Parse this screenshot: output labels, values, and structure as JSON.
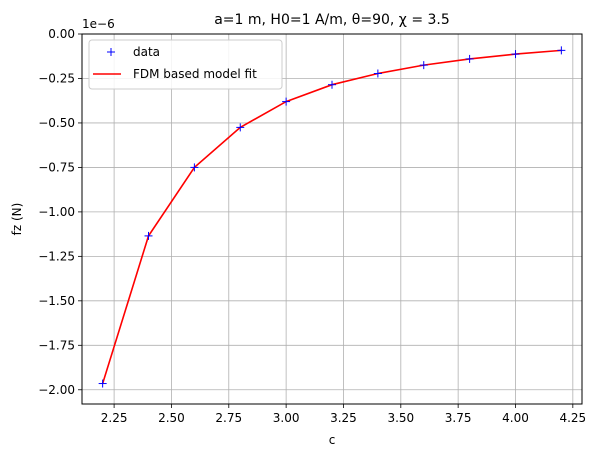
{
  "chart_data": {
    "type": "line",
    "title": "a=1 m, H0=1 A/m, θ=90, χ = 3.5",
    "xlabel": "c",
    "ylabel": "fz (N)",
    "y_offset_label": "1e−6",
    "xlim": [
      2.11,
      4.29
    ],
    "ylim": [
      -2.08,
      0.0
    ],
    "xticks": [
      2.25,
      2.5,
      2.75,
      3.0,
      3.25,
      3.5,
      3.75,
      4.0,
      4.25
    ],
    "xtick_labels": [
      "2.25",
      "2.50",
      "2.75",
      "3.00",
      "3.25",
      "3.50",
      "3.75",
      "4.00",
      "4.25"
    ],
    "yticks": [
      0.0,
      -0.25,
      -0.5,
      -0.75,
      -1.0,
      -1.25,
      -1.5,
      -1.75,
      -2.0
    ],
    "ytick_labels": [
      "0.00",
      "−0.25",
      "−0.50",
      "−0.75",
      "−1.00",
      "−1.25",
      "−1.50",
      "−1.75",
      "−2.00"
    ],
    "grid": true,
    "legend_position": "top-left",
    "x": [
      2.2,
      2.4,
      2.6,
      2.8,
      3.0,
      3.2,
      3.4,
      3.6,
      3.8,
      4.0,
      4.2
    ],
    "series": [
      {
        "name": "data",
        "style": "marker",
        "marker": "+",
        "color": "#0000ff",
        "values": [
          -1.965,
          -1.135,
          -0.75,
          -0.525,
          -0.38,
          -0.285,
          -0.222,
          -0.175,
          -0.14,
          -0.113,
          -0.092
        ]
      },
      {
        "name": "FDM based model fit",
        "style": "line",
        "color": "#ff0000",
        "values": [
          -1.965,
          -1.135,
          -0.75,
          -0.525,
          -0.38,
          -0.285,
          -0.222,
          -0.175,
          -0.14,
          -0.113,
          -0.092
        ]
      }
    ]
  }
}
